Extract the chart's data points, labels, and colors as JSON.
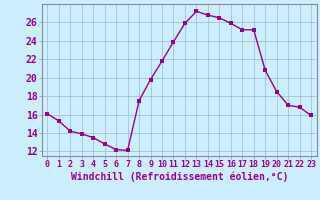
{
  "x": [
    0,
    1,
    2,
    3,
    4,
    5,
    6,
    7,
    8,
    9,
    10,
    11,
    12,
    13,
    14,
    15,
    16,
    17,
    18,
    19,
    20,
    21,
    22,
    23
  ],
  "y": [
    16.1,
    15.3,
    14.2,
    13.9,
    13.5,
    12.8,
    12.2,
    12.1,
    17.5,
    19.8,
    21.8,
    23.9,
    25.9,
    27.2,
    26.8,
    26.5,
    25.9,
    25.2,
    25.2,
    20.8,
    18.5,
    17.0,
    16.8,
    15.9
  ],
  "line_color": "#990099",
  "marker": "s",
  "markersize": 2.5,
  "linewidth": 1.0,
  "bg_color": "#cceeff",
  "grid_color": "#99bbcc",
  "spine_color": "#888899",
  "xlabel": "Windchill (Refroidissement éolien,°C)",
  "xlim": [
    -0.5,
    23.5
  ],
  "ylim": [
    11.5,
    28.0
  ],
  "xticks": [
    0,
    1,
    2,
    3,
    4,
    5,
    6,
    7,
    8,
    9,
    10,
    11,
    12,
    13,
    14,
    15,
    16,
    17,
    18,
    19,
    20,
    21,
    22,
    23
  ],
  "yticks": [
    12,
    14,
    16,
    18,
    20,
    22,
    24,
    26
  ],
  "tick_color": "#990099",
  "xlabel_fontsize": 7,
  "xtick_fontsize": 6,
  "ytick_fontsize": 7
}
